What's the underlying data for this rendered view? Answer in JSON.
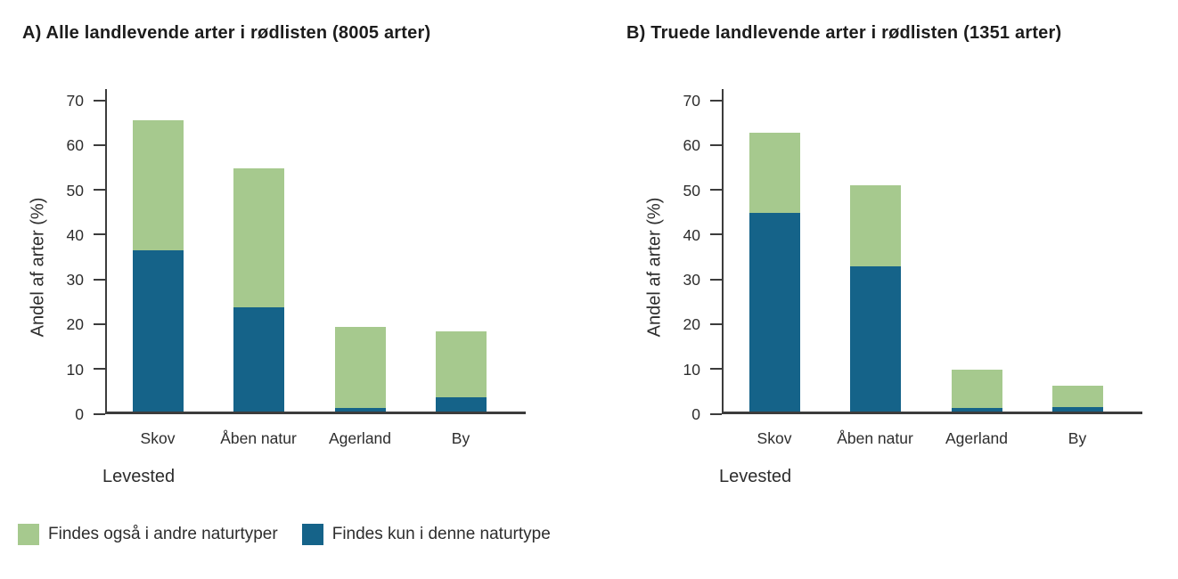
{
  "colors": {
    "green": "#a6c98e",
    "blue": "#156389",
    "axis": "#3c3c3c",
    "text": "#2d2d2d"
  },
  "legend": {
    "position": "bottom-left",
    "items": [
      {
        "label": "Findes også i andre naturtyper",
        "color_key": "green"
      },
      {
        "label": "Findes kun i denne naturtype",
        "color_key": "blue"
      }
    ]
  },
  "chart_data": [
    {
      "id": "A",
      "type": "bar",
      "stacked": true,
      "title": "A) Alle landlevende arter i rødlisten (8005 arter)",
      "ylabel": "Andel af arter (%)",
      "xlabel": "Levested",
      "ylim": [
        0,
        70
      ],
      "yticks": [
        0,
        10,
        20,
        30,
        40,
        50,
        60,
        70
      ],
      "grid": false,
      "categories": [
        "Skov",
        "Åben natur",
        "Agerland",
        "By"
      ],
      "series": [
        {
          "name": "Findes kun i denne naturtype",
          "color_key": "blue",
          "values": [
            36,
            23.3,
            0.7,
            3.2
          ]
        },
        {
          "name": "Findes også i andre naturtyper",
          "color_key": "green",
          "values": [
            29,
            31,
            18.2,
            14.7
          ]
        }
      ],
      "totals": [
        65,
        54.3,
        18.9,
        17.9
      ]
    },
    {
      "id": "B",
      "type": "bar",
      "stacked": true,
      "title": "B) Truede landlevende arter i rødlisten (1351 arter)",
      "ylabel": "Andel af arter (%)",
      "xlabel": "Levested",
      "ylim": [
        0,
        70
      ],
      "yticks": [
        0,
        10,
        20,
        30,
        40,
        50,
        60,
        70
      ],
      "grid": false,
      "categories": [
        "Skov",
        "Åben natur",
        "Agerland",
        "By"
      ],
      "series": [
        {
          "name": "Findes kun i denne naturtype",
          "color_key": "blue",
          "values": [
            44.4,
            32.5,
            0.7,
            1
          ]
        },
        {
          "name": "Findes også i andre naturtyper",
          "color_key": "green",
          "values": [
            17.8,
            18,
            8.7,
            4.8
          ]
        }
      ],
      "totals": [
        62.2,
        50.5,
        9.4,
        5.8
      ]
    }
  ]
}
